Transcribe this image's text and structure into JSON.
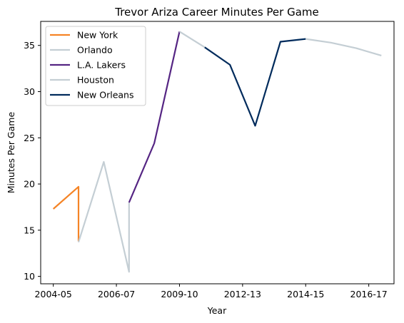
{
  "chart_data": {
    "type": "line",
    "title": "Trevor Ariza Career Minutes Per Game",
    "xlabel": "Year",
    "ylabel": "Minutes Per Game",
    "x_ticks": [
      "2004-05",
      "2006-07",
      "2009-10",
      "2012-13",
      "2014-15",
      "2016-17"
    ],
    "y_ticks": [
      10,
      15,
      20,
      25,
      30,
      35
    ],
    "xlim": [
      -0.5,
      13.5
    ],
    "ylim": [
      9.2,
      37.6
    ],
    "grid": false,
    "legend_position": "top-left",
    "series": [
      {
        "name": "New York",
        "color": "#F58426",
        "points": [
          [
            0,
            17.3
          ],
          [
            1,
            19.7
          ],
          [
            1,
            13.8
          ]
        ]
      },
      {
        "name": "Orlando",
        "color": "#C4CED4",
        "points": [
          [
            1,
            13.7
          ],
          [
            2,
            22.4
          ],
          [
            3,
            10.5
          ],
          [
            3,
            18.0
          ]
        ]
      },
      {
        "name": "L.A. Lakers",
        "color": "#552583",
        "points": [
          [
            3,
            18.0
          ],
          [
            4,
            24.4
          ],
          [
            5,
            36.5
          ]
        ]
      },
      {
        "name": "Houston",
        "color": "#C4CED4",
        "points": [
          [
            5,
            36.5
          ],
          [
            6,
            34.8
          ]
        ]
      },
      {
        "name": "New Orleans",
        "color": "#002B5C",
        "points": [
          [
            6,
            34.8
          ],
          [
            7,
            32.9
          ],
          [
            8,
            26.3
          ],
          [
            9,
            35.4
          ],
          [
            10,
            35.7
          ]
        ]
      },
      {
        "name": "",
        "color": "#C4CED4",
        "points": [
          [
            10,
            35.7
          ],
          [
            11,
            35.3
          ],
          [
            12,
            34.7
          ],
          [
            13,
            33.9
          ]
        ]
      }
    ]
  }
}
